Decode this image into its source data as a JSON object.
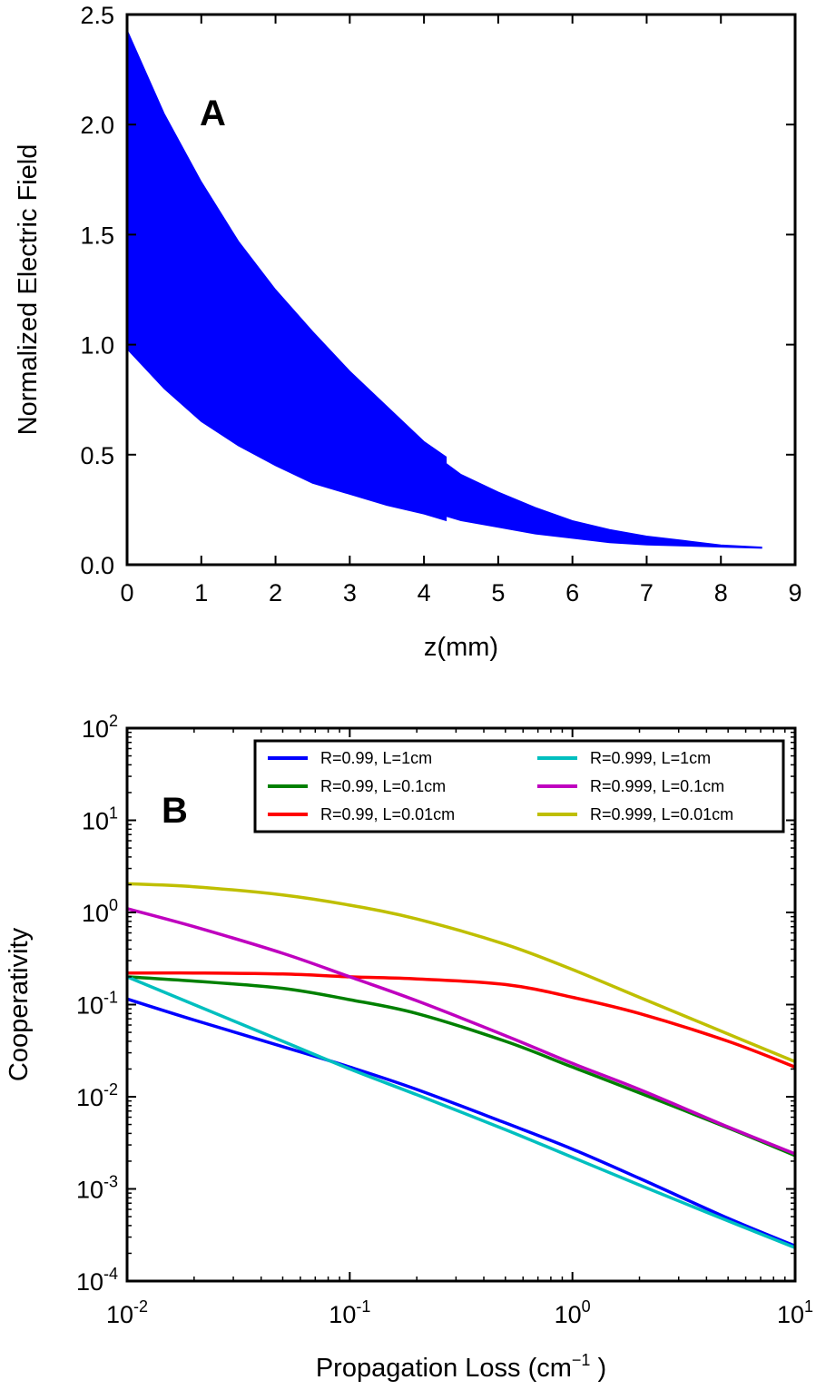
{
  "chart_data": [
    {
      "type": "area",
      "panel_label": "A",
      "xlabel": "z(mm)",
      "ylabel": "Normalized Electric Field",
      "xlim": [
        0,
        9
      ],
      "ylim": [
        0.0,
        2.5
      ],
      "xticks": [
        "0",
        "1",
        "2",
        "3",
        "4",
        "5",
        "6",
        "7",
        "8",
        "9"
      ],
      "yticks": [
        "0.0",
        "0.5",
        "1.0",
        "1.5",
        "2.0",
        "2.5"
      ],
      "color": "#0000ff",
      "series": [
        {
          "name": "upper envelope",
          "x": [
            0,
            0.5,
            1,
            1.5,
            2,
            2.5,
            3,
            3.5,
            4,
            4.3,
            4.3,
            4.5,
            5,
            5.5,
            6,
            6.5,
            7,
            7.5,
            8,
            8.55
          ],
          "y": [
            2.43,
            2.05,
            1.74,
            1.47,
            1.25,
            1.06,
            0.88,
            0.72,
            0.56,
            0.49,
            0.46,
            0.41,
            0.33,
            0.26,
            0.2,
            0.16,
            0.13,
            0.11,
            0.09,
            0.08
          ]
        },
        {
          "name": "lower envelope",
          "x": [
            0,
            0.5,
            1,
            1.5,
            2,
            2.5,
            3,
            3.5,
            4,
            4.3,
            4.3,
            4.5,
            5,
            5.5,
            6,
            6.5,
            7,
            7.5,
            8,
            8.55
          ],
          "y": [
            0.98,
            0.8,
            0.65,
            0.54,
            0.45,
            0.37,
            0.32,
            0.27,
            0.23,
            0.2,
            0.22,
            0.2,
            0.17,
            0.14,
            0.12,
            0.1,
            0.09,
            0.085,
            0.08,
            0.075
          ]
        }
      ]
    },
    {
      "type": "line",
      "panel_label": "B",
      "xlabel_main": "Propagation Loss (cm",
      "xlabel_sup": "−1",
      "xlabel_end": " )",
      "ylabel": "Cooperativity",
      "xscale": "log",
      "yscale": "log",
      "xlim": [
        0.01,
        10
      ],
      "ylim": [
        0.0001,
        100
      ],
      "xtick_values": [
        0.01,
        0.1,
        1,
        10
      ],
      "xtick_base": "10",
      "xtick_exps": [
        "-2",
        "-1",
        "0",
        "1"
      ],
      "ytick_values": [
        0.0001,
        0.001,
        0.01,
        0.1,
        1,
        10,
        100
      ],
      "ytick_base": "10",
      "ytick_exps": [
        "-4",
        "-3",
        "-2",
        "-1",
        "0",
        "1",
        "2"
      ],
      "legend_position": "upper-right",
      "x": [
        0.01,
        0.02,
        0.05,
        0.1,
        0.2,
        0.5,
        1,
        2,
        5,
        10
      ],
      "series": [
        {
          "name": "R=0.99, L=1cm",
          "color": "#0000ff",
          "values": [
            0.115,
            0.068,
            0.035,
            0.021,
            0.012,
            0.0052,
            0.0027,
            0.0013,
            0.00048,
            0.00024
          ]
        },
        {
          "name": "R=0.99, L=0.1cm",
          "color": "#008000",
          "values": [
            0.2,
            0.18,
            0.15,
            0.113,
            0.08,
            0.04,
            0.021,
            0.011,
            0.0046,
            0.0023
          ]
        },
        {
          "name": "R=0.99, L=0.01cm",
          "color": "#ff0000",
          "values": [
            0.22,
            0.22,
            0.215,
            0.2,
            0.19,
            0.165,
            0.12,
            0.08,
            0.04,
            0.021
          ]
        },
        {
          "name": "R=0.999, L=1cm",
          "color": "#00bfbf",
          "values": [
            0.2,
            0.1,
            0.04,
            0.02,
            0.0105,
            0.0044,
            0.0022,
            0.0011,
            0.00045,
            0.00023
          ]
        },
        {
          "name": "R=0.999, L=0.1cm",
          "color": "#bf00bf",
          "values": [
            1.1,
            0.7,
            0.36,
            0.2,
            0.11,
            0.046,
            0.023,
            0.012,
            0.0047,
            0.0024
          ]
        },
        {
          "name": "R=0.999, L=0.01cm",
          "color": "#bfbf00",
          "values": [
            2.05,
            1.9,
            1.55,
            1.2,
            0.85,
            0.45,
            0.24,
            0.12,
            0.048,
            0.024
          ]
        }
      ]
    }
  ]
}
